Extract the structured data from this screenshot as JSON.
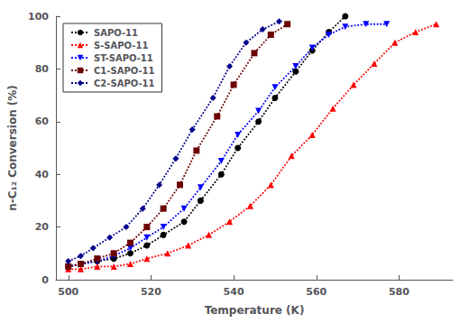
{
  "chart_data": {
    "type": "line",
    "xlabel": "Temperature (K)",
    "ylabel": "n-C₁₂ Conversion (%)",
    "xlim": [
      497,
      593
    ],
    "ylim": [
      0,
      100
    ],
    "xticks": [
      500,
      520,
      540,
      560,
      580
    ],
    "yticks": [
      0,
      20,
      40,
      60,
      80,
      100
    ],
    "grid": false,
    "legend": "upper left",
    "line_style": "dotted",
    "series": [
      {
        "name": "SAPO-11",
        "color": "black",
        "marker": "circle",
        "x": [
          500,
          503,
          507,
          511,
          515,
          519,
          523,
          528,
          532,
          537,
          541,
          546,
          550,
          555,
          559,
          563,
          567
        ],
        "values": [
          5,
          6,
          7,
          8,
          10,
          13,
          17,
          22,
          30,
          40,
          50,
          60,
          69,
          79,
          87,
          94,
          100
        ]
      },
      {
        "name": "S-SAPO-11",
        "color": "red",
        "marker": "triangle_up",
        "x": [
          500,
          503,
          507,
          511,
          515,
          519,
          524,
          529,
          534,
          539,
          544,
          549,
          554,
          559,
          564,
          569,
          574,
          579,
          584,
          589
        ],
        "values": [
          4,
          4,
          5,
          5,
          6,
          8,
          10,
          13,
          17,
          22,
          28,
          36,
          47,
          55,
          65,
          74,
          82,
          90,
          94,
          97
        ]
      },
      {
        "name": "ST-SAPO-11",
        "color": "blue",
        "marker": "triangle_down",
        "x": [
          500,
          503,
          507,
          511,
          515,
          519,
          523,
          528,
          532,
          537,
          541,
          546,
          550,
          555,
          559,
          563,
          567,
          572,
          577
        ],
        "values": [
          5,
          6,
          7,
          9,
          12,
          16,
          20,
          27,
          35,
          45,
          55,
          64,
          73,
          81,
          88,
          93,
          96,
          97,
          97
        ]
      },
      {
        "name": "C1-SAPO-11",
        "color": "#6B0000",
        "marker": "square",
        "x": [
          500,
          503,
          507,
          511,
          515,
          519,
          523,
          527,
          531,
          536,
          540,
          545,
          549,
          553
        ],
        "values": [
          5,
          6,
          8,
          10,
          14,
          20,
          27,
          36,
          49,
          62,
          74,
          86,
          93,
          97
        ]
      },
      {
        "name": "C2-SAPO-11",
        "color": "#00008B",
        "marker": "diamond",
        "x": [
          500,
          503,
          506,
          510,
          514,
          518,
          522,
          526,
          530,
          535,
          539,
          543,
          547,
          551
        ],
        "values": [
          7,
          9,
          12,
          16,
          20,
          27,
          36,
          46,
          57,
          69,
          81,
          90,
          95,
          98
        ]
      }
    ]
  }
}
